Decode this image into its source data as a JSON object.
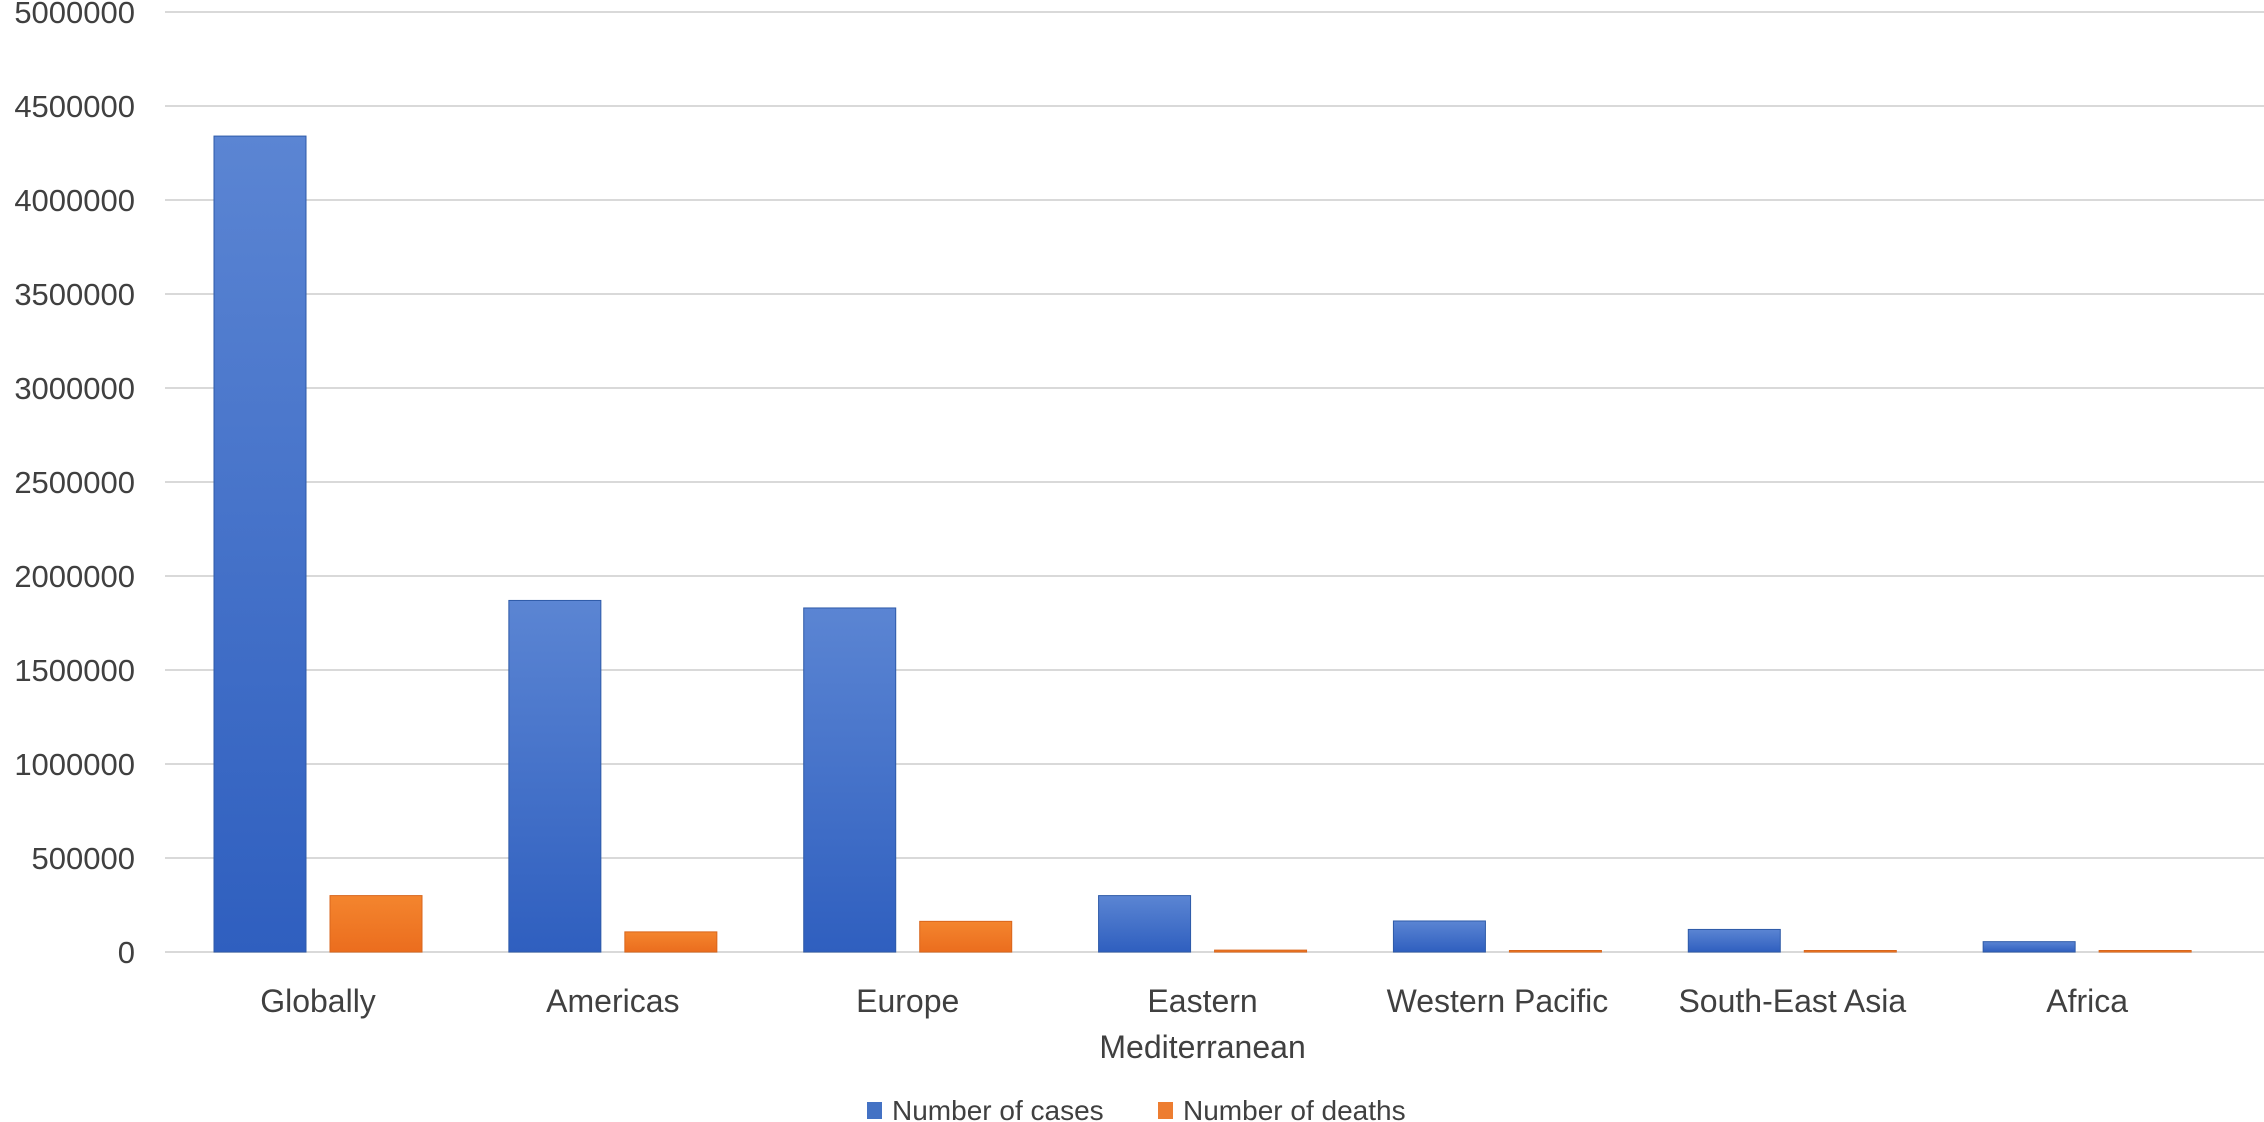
{
  "chart_data": {
    "type": "bar",
    "title": "",
    "xlabel": "",
    "ylabel": "",
    "ylim": [
      0,
      5000000
    ],
    "ytick_step": 500000,
    "grid": true,
    "legend_position": "bottom",
    "categories": [
      [
        "Globally"
      ],
      [
        "Americas"
      ],
      [
        "Europe"
      ],
      [
        "Eastern",
        "Mediterranean"
      ],
      [
        "Western Pacific"
      ],
      [
        "South-East Asia"
      ],
      [
        "Africa"
      ]
    ],
    "series": [
      {
        "name": "Number of cases",
        "color": "#4472C4",
        "values": [
          4340000,
          1870000,
          1830000,
          300000,
          165000,
          120000,
          55000
        ]
      },
      {
        "name": "Number of deaths",
        "color": "#ED7D31",
        "values": [
          300000,
          107000,
          163000,
          10000,
          5000,
          5000,
          2000
        ]
      }
    ]
  }
}
